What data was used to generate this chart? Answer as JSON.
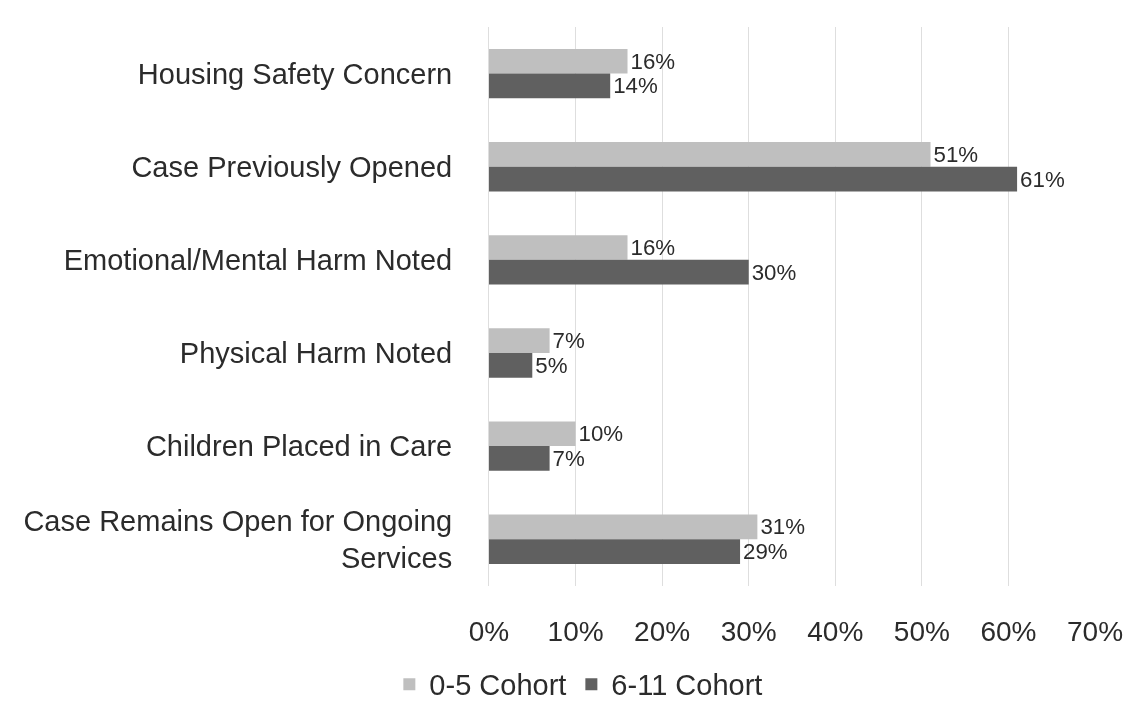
{
  "chart_data": {
    "type": "bar",
    "orientation": "horizontal",
    "categories": [
      "Housing Safety Concern",
      "Case Previously Opened",
      "Emotional/Mental Harm Noted",
      "Physical Harm Noted",
      "Children Placed in Care",
      "Case Remains Open for Ongoing Services"
    ],
    "series": [
      {
        "name": "0-5 Cohort",
        "color": "#bfbfbf",
        "values": [
          16,
          51,
          16,
          7,
          10,
          31
        ],
        "value_labels": [
          "16%",
          "51%",
          "16%",
          "7%",
          "10%",
          "31%"
        ]
      },
      {
        "name": "6-11 Cohort",
        "color": "#606060",
        "values": [
          14,
          61,
          30,
          5,
          7,
          29
        ],
        "value_labels": [
          "14%",
          "61%",
          "30%",
          "5%",
          "7%",
          "29%"
        ]
      }
    ],
    "xlim": [
      0,
      70
    ],
    "xticks": [
      {
        "value": 0,
        "label": "0%"
      },
      {
        "value": 10,
        "label": "10%"
      },
      {
        "value": 20,
        "label": "20%"
      },
      {
        "value": 30,
        "label": "30%"
      },
      {
        "value": 40,
        "label": "40%"
      },
      {
        "value": 50,
        "label": "50%"
      },
      {
        "value": 60,
        "label": "60%"
      },
      {
        "value": 70,
        "label": "70%"
      }
    ],
    "grid": "x",
    "legend": "bottom"
  }
}
